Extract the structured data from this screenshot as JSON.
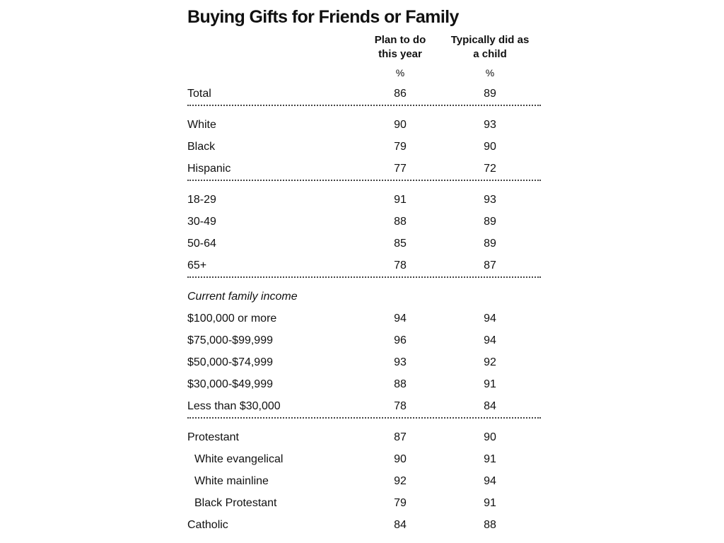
{
  "title": "Buying Gifts for Friends or Family",
  "columns": [
    {
      "lines": [
        "Plan to do",
        "this year"
      ],
      "unit": "%"
    },
    {
      "lines": [
        "Typically did as",
        "a child"
      ],
      "unit": "%"
    }
  ],
  "sections": [
    {
      "rows": [
        {
          "label": "Total",
          "values": [
            86,
            89
          ]
        }
      ]
    },
    {
      "rows": [
        {
          "label": "White",
          "values": [
            90,
            93
          ]
        },
        {
          "label": "Black",
          "values": [
            79,
            90
          ]
        },
        {
          "label": "Hispanic",
          "values": [
            77,
            72
          ]
        }
      ]
    },
    {
      "rows": [
        {
          "label": "18-29",
          "values": [
            91,
            93
          ]
        },
        {
          "label": "30-49",
          "values": [
            88,
            89
          ]
        },
        {
          "label": "50-64",
          "values": [
            85,
            89
          ]
        },
        {
          "label": "65+",
          "values": [
            78,
            87
          ]
        }
      ]
    },
    {
      "heading": "Current family income",
      "rows": [
        {
          "label": "$100,000 or more",
          "values": [
            94,
            94
          ]
        },
        {
          "label": "$75,000-$99,999",
          "values": [
            96,
            94
          ]
        },
        {
          "label": "$50,000-$74,999",
          "values": [
            93,
            92
          ]
        },
        {
          "label": "$30,000-$49,999",
          "values": [
            88,
            91
          ]
        },
        {
          "label": "Less than $30,000",
          "values": [
            78,
            84
          ]
        }
      ]
    },
    {
      "rows": [
        {
          "label": "Protestant",
          "values": [
            87,
            90
          ],
          "subrows": [
            {
              "label": "White evangelical",
              "values": [
                90,
                91
              ]
            },
            {
              "label": "White mainline",
              "values": [
                92,
                94
              ]
            },
            {
              "label": "Black Protestant",
              "values": [
                79,
                91
              ]
            }
          ]
        },
        {
          "label": "Catholic",
          "values": [
            84,
            88
          ]
        }
      ]
    }
  ]
}
